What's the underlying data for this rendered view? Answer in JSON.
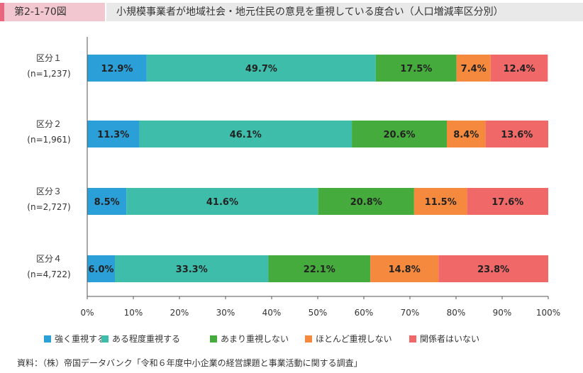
{
  "header": {
    "figure_number": "第2-1-70図",
    "title": "小規模事業者が地域社会・地元住民の意見を重視している度合い（人口増減率区分別）"
  },
  "chart_data": {
    "type": "bar",
    "orientation": "horizontal",
    "stacked": true,
    "categories": [
      {
        "name": "区分１",
        "n": "(n=1,237)"
      },
      {
        "name": "区分２",
        "n": "(n=1,961)"
      },
      {
        "name": "区分３",
        "n": "(n=2,727)"
      },
      {
        "name": "区分４",
        "n": "(n=4,722)"
      }
    ],
    "series": [
      {
        "name": "強く重視する",
        "color": "#2b9fd8",
        "values": [
          12.9,
          11.3,
          8.5,
          6.0
        ],
        "labels": [
          "12.9%",
          "11.3%",
          "8.5%",
          "6.0%"
        ]
      },
      {
        "name": "ある程度重視する",
        "color": "#3dbdaa",
        "values": [
          49.7,
          46.1,
          41.6,
          33.3
        ],
        "labels": [
          "49.7%",
          "46.1%",
          "41.6%",
          "33.3%"
        ]
      },
      {
        "name": "あまり重視しない",
        "color": "#45ab3c",
        "values": [
          17.5,
          20.6,
          20.8,
          22.1
        ],
        "labels": [
          "17.5%",
          "20.6%",
          "20.8%",
          "22.1%"
        ]
      },
      {
        "name": "ほとんど重視しない",
        "color": "#f58a3e",
        "values": [
          7.4,
          8.4,
          11.5,
          14.8
        ],
        "labels": [
          "7.4%",
          "8.4%",
          "11.5%",
          "14.8%"
        ]
      },
      {
        "name": "関係者はいない",
        "color": "#f06868",
        "values": [
          12.4,
          13.6,
          17.6,
          23.8
        ],
        "labels": [
          "12.4%",
          "13.6%",
          "17.6%",
          "23.8%"
        ]
      }
    ],
    "xlim": [
      0,
      100
    ],
    "x_ticks": [
      "0%",
      "10%",
      "20%",
      "30%",
      "40%",
      "50%",
      "60%",
      "70%",
      "80%",
      "90%",
      "100%"
    ],
    "legend": "bottom",
    "grid": false
  },
  "source": "資料：（株）帝国データバンク「令和６年度中小企業の経営課題と事業活動に関する調査」"
}
